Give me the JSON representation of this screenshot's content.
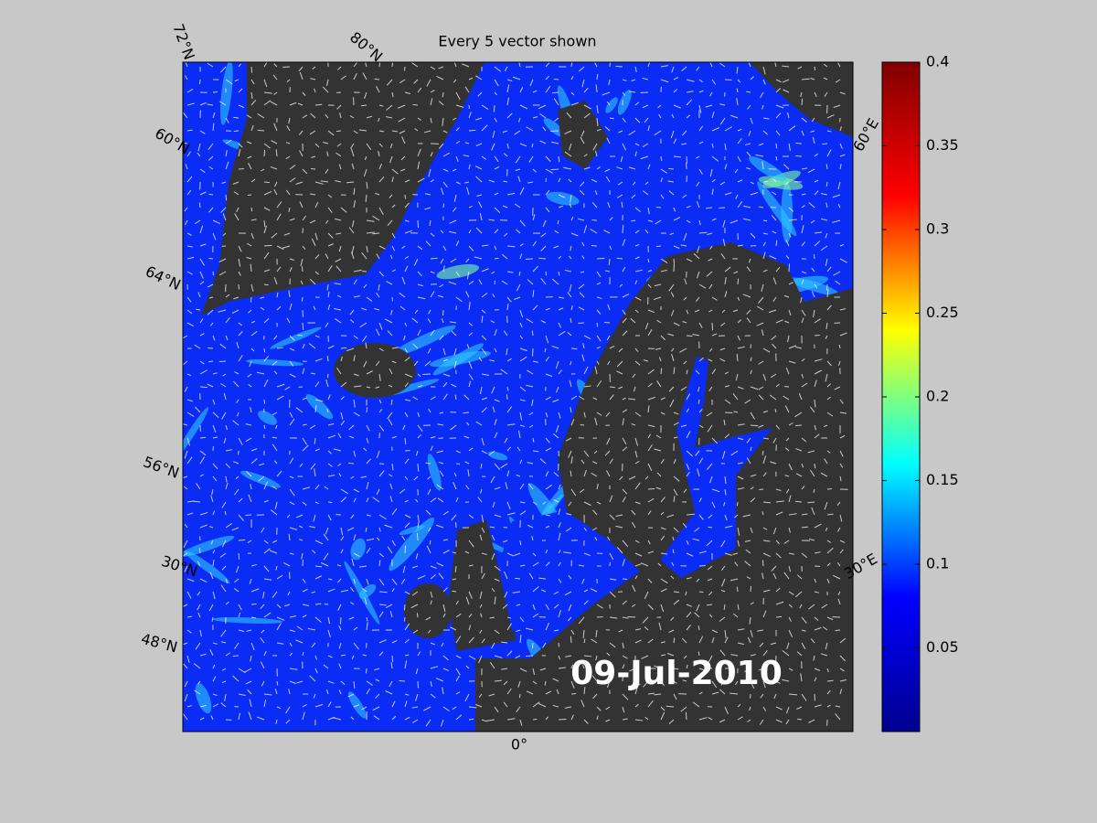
{
  "map": {
    "title": "Every 5 vector shown",
    "date_label": "09-Jul-2010",
    "lat_labels": [
      "72°N",
      "80°N",
      "60°N",
      "64°N",
      "56°N",
      "30°N",
      "48°N"
    ],
    "lon_labels": [
      "60°E",
      "30°E",
      "0°"
    ]
  },
  "colorbar": {
    "lim": [
      0,
      0.4
    ],
    "ticks": [
      0.05,
      0.1,
      0.15,
      0.2,
      0.25,
      0.3,
      0.35,
      0.4
    ],
    "colormap": [
      "#00008f",
      "#0000ff",
      "#00ffff",
      "#ffff00",
      "#ff0000",
      "#800000"
    ]
  }
}
